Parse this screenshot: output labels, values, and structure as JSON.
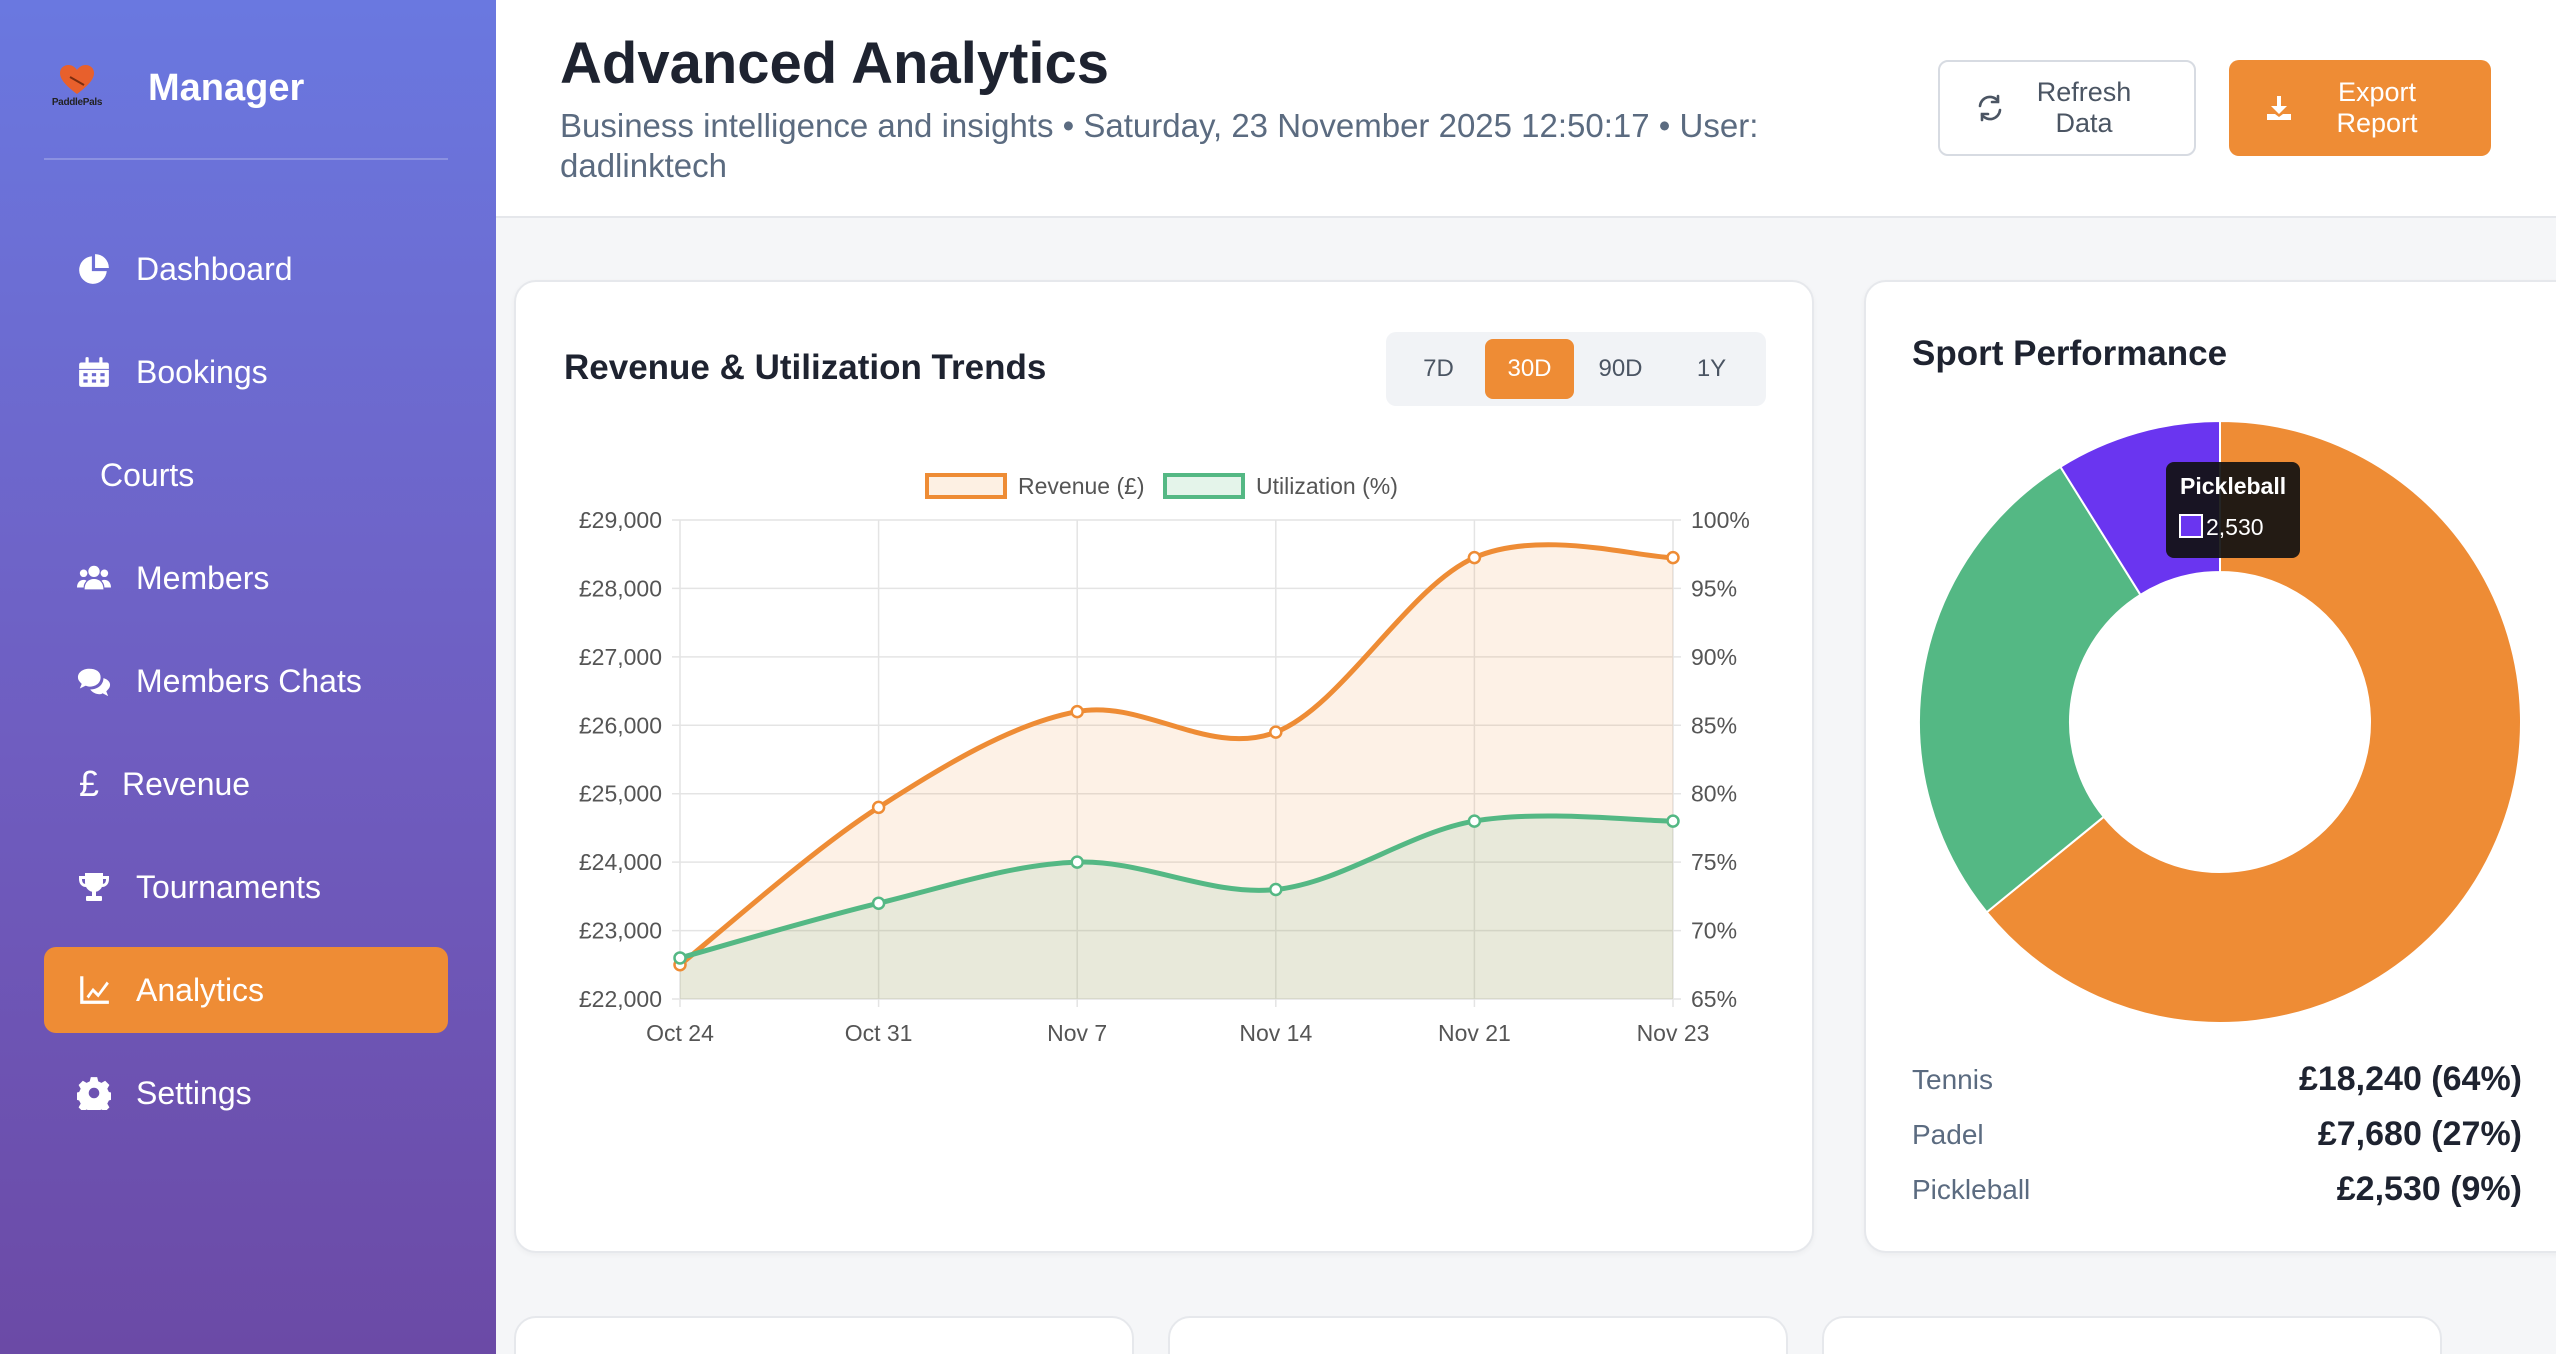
{
  "brand": {
    "logo_text": "PaddlePals",
    "name": "Manager"
  },
  "sidebar": {
    "items": [
      {
        "label": "Dashboard",
        "icon": "pie-chart-icon",
        "active": false
      },
      {
        "label": "Bookings",
        "icon": "calendar-icon",
        "active": false
      },
      {
        "label": "Courts",
        "icon": "",
        "active": false
      },
      {
        "label": "Members",
        "icon": "users-icon",
        "active": false
      },
      {
        "label": "Members Chats",
        "icon": "chat-bubbles-icon",
        "active": false
      },
      {
        "label": "Revenue",
        "icon": "pound-icon",
        "active": false
      },
      {
        "label": "Tournaments",
        "icon": "trophy-icon",
        "active": false
      },
      {
        "label": "Analytics",
        "icon": "line-chart-icon",
        "active": true
      },
      {
        "label": "Settings",
        "icon": "gear-icon",
        "active": false
      }
    ]
  },
  "header": {
    "title": "Advanced Analytics",
    "subtitle": "Business intelligence and insights • Saturday, 23 November 2025 12:50:17 • User: dadlinktech",
    "refresh_label": "Refresh Data",
    "export_label": "Export Report"
  },
  "trends": {
    "title": "Revenue & Utilization Trends",
    "ranges": [
      "7D",
      "30D",
      "90D",
      "1Y"
    ],
    "active_range": "30D"
  },
  "sport": {
    "title": "Sport Performance",
    "tooltip": {
      "title": "Pickleball",
      "value": "2,530"
    },
    "stats": [
      {
        "name": "Tennis",
        "value": "£18,240 (64%)"
      },
      {
        "name": "Padel",
        "value": "£7,680 (27%)"
      },
      {
        "name": "Pickleball",
        "value": "£2,530 (9%)"
      }
    ]
  },
  "colors": {
    "accent": "#ee8c35",
    "revenue": "#ee8c35",
    "utilization": "#54b884",
    "pickleball": "#6a35f0"
  },
  "chart_data": [
    {
      "type": "line",
      "title": "Revenue & Utilization Trends",
      "x": [
        "Oct 24",
        "Oct 31",
        "Nov 7",
        "Nov 14",
        "Nov 21",
        "Nov 23"
      ],
      "series": [
        {
          "name": "Revenue (£)",
          "axis": "left",
          "values": [
            22500,
            24800,
            26200,
            25900,
            28450,
            28450
          ]
        },
        {
          "name": "Utilization (%)",
          "axis": "right",
          "values": [
            68,
            72,
            75,
            73,
            78,
            78
          ]
        }
      ],
      "yleft": {
        "min": 22000,
        "max": 29000,
        "ticks": [
          "£22,000",
          "£23,000",
          "£24,000",
          "£25,000",
          "£26,000",
          "£27,000",
          "£28,000",
          "£29,000"
        ]
      },
      "yright": {
        "min": 65,
        "max": 100,
        "ticks": [
          "65%",
          "70%",
          "75%",
          "80%",
          "85%",
          "90%",
          "95%",
          "100%"
        ]
      },
      "grid": true,
      "legend": "top"
    },
    {
      "type": "pie",
      "style": "doughnut",
      "title": "Sport Performance",
      "categories": [
        "Tennis",
        "Padel",
        "Pickleball"
      ],
      "values": [
        18240,
        7680,
        2530
      ],
      "colors": [
        "#ee8c35",
        "#54b884",
        "#6a35f0"
      ]
    }
  ]
}
